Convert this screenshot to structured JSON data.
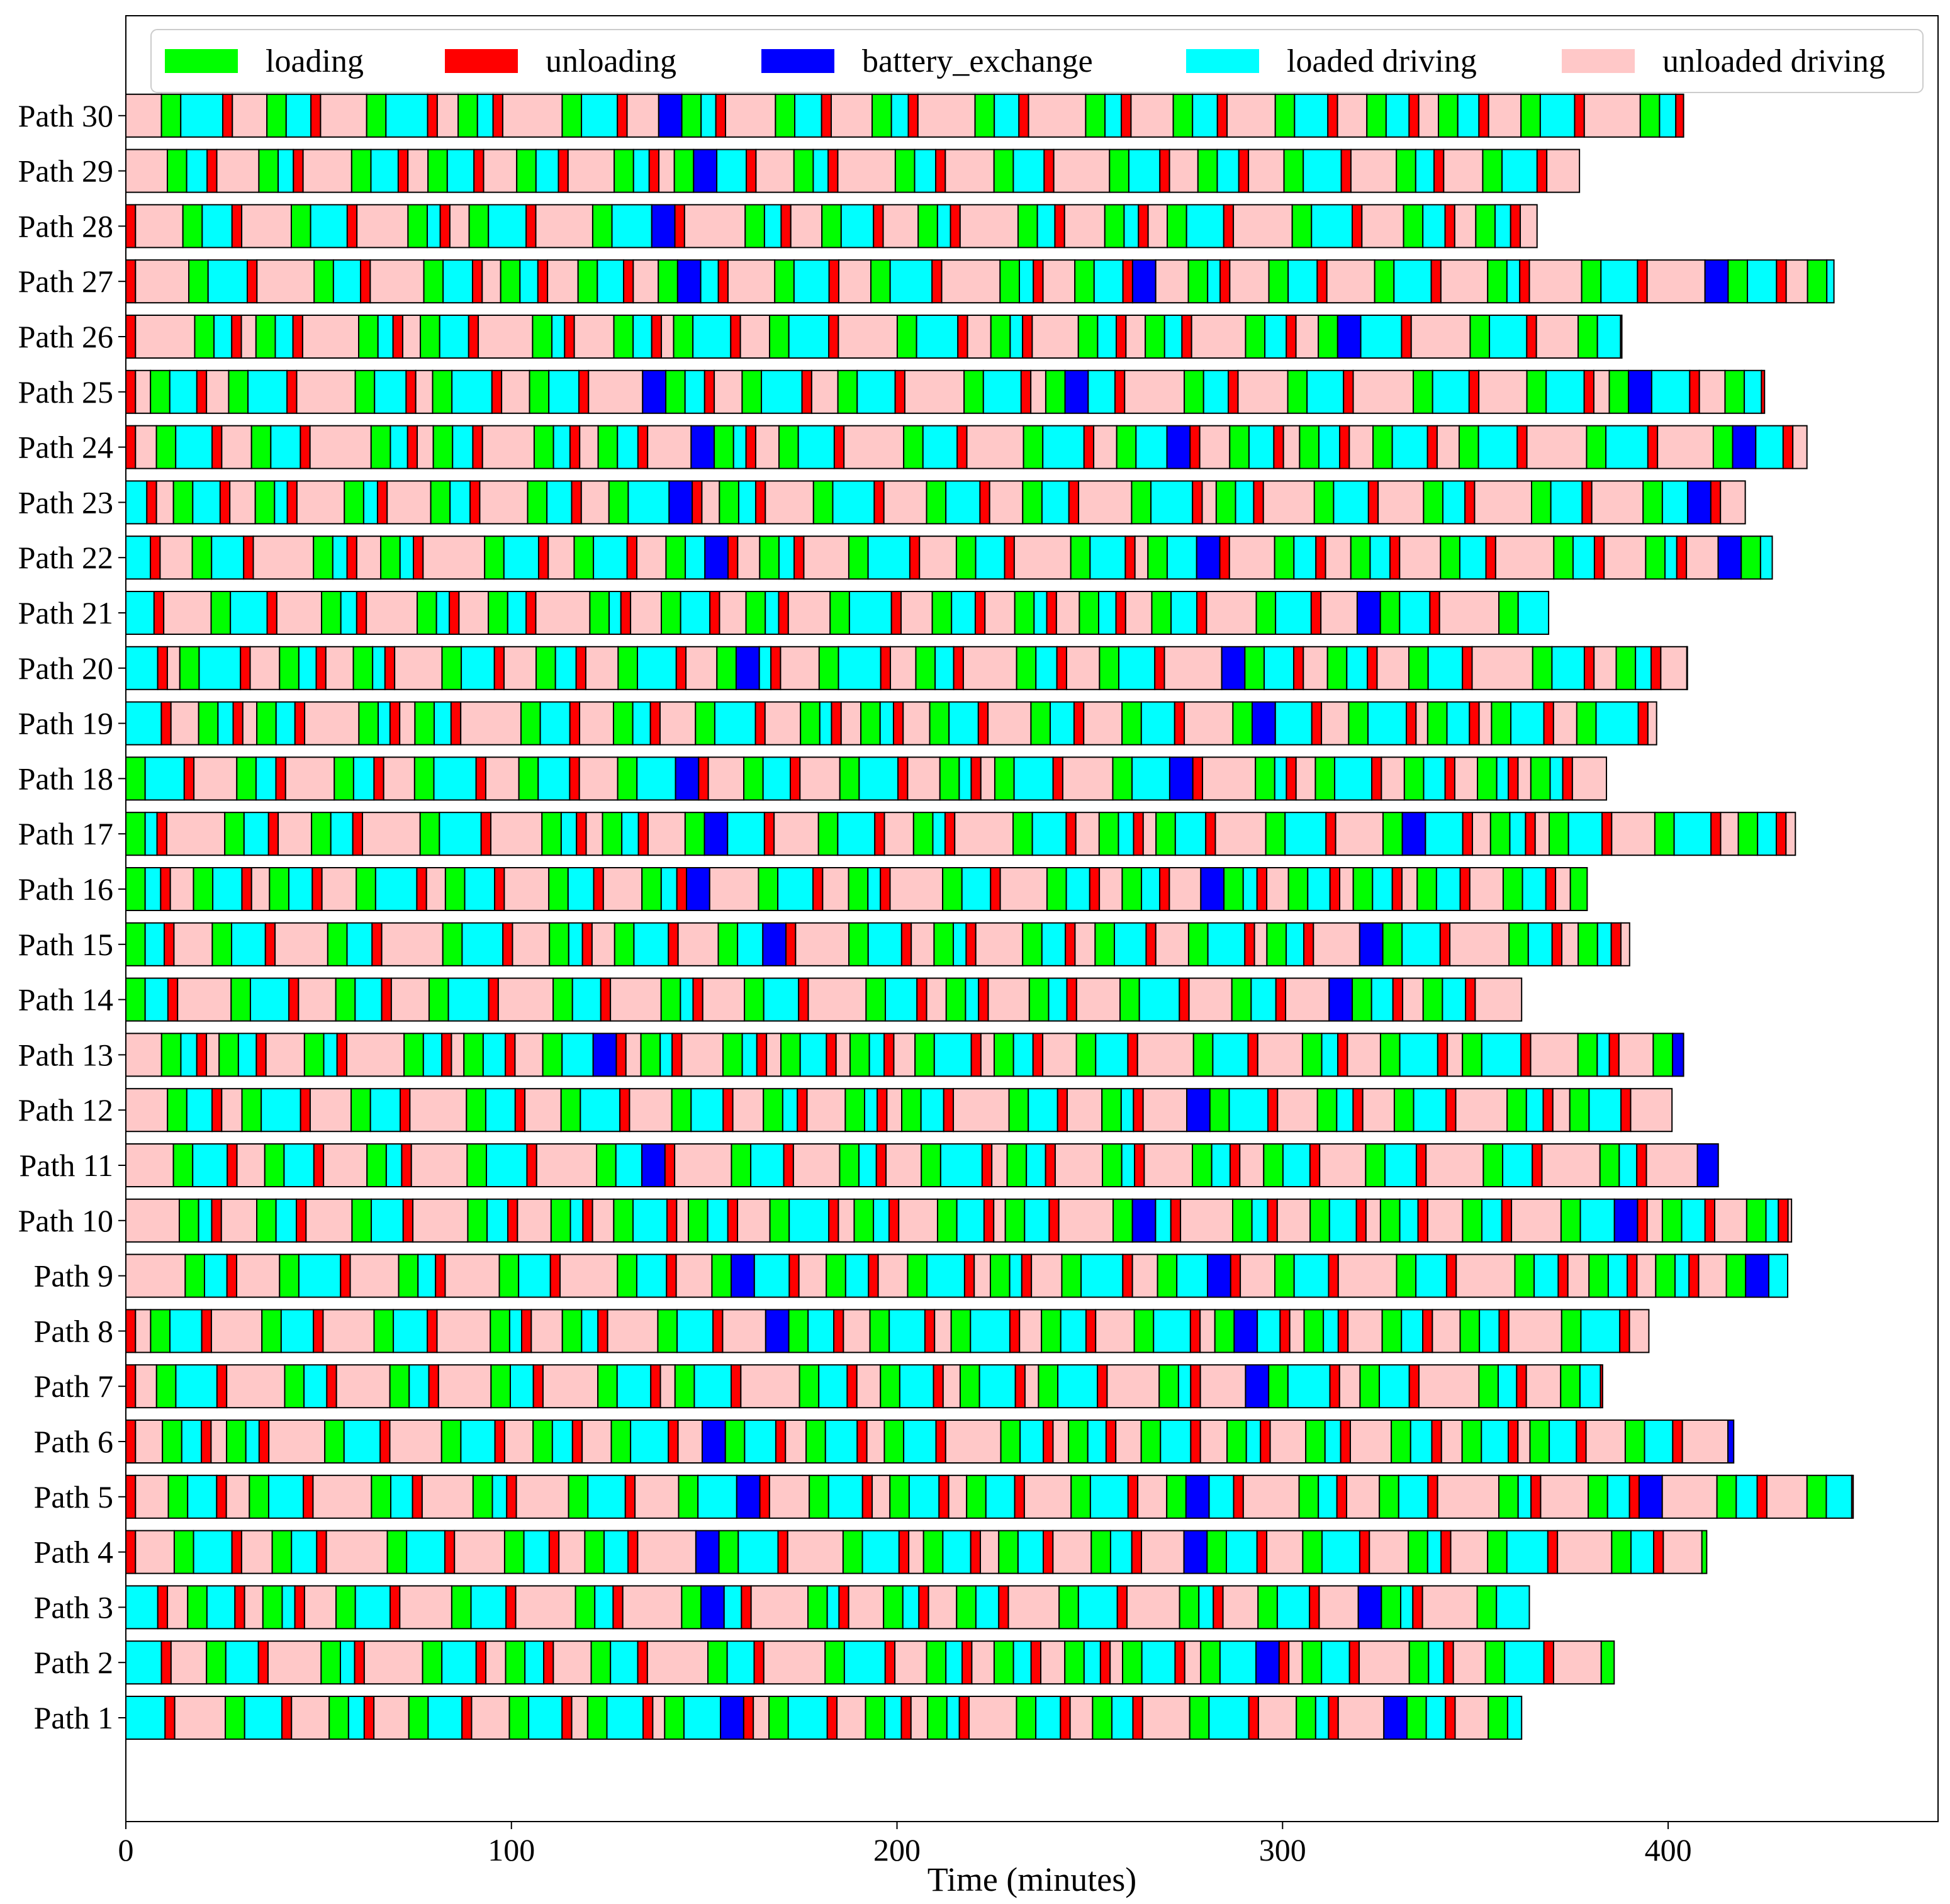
{
  "chart_data": {
    "type": "gantt",
    "xlabel": "Time (minutes)",
    "xlim": [
      0,
      470
    ],
    "xticks": [
      0,
      100,
      200,
      300,
      400
    ],
    "legend_position": "top",
    "legend": [
      {
        "key": "loading",
        "label": "loading",
        "color": "#00ff00"
      },
      {
        "key": "unloading",
        "label": "unloading",
        "color": "#ff0000"
      },
      {
        "key": "battery_exchange",
        "label": "battery_exchange",
        "color": "#0000ff"
      },
      {
        "key": "loaded_driving",
        "label": "loaded driving",
        "color": "#00ffff"
      },
      {
        "key": "unloaded_driving",
        "label": "unloaded driving",
        "color": "#ffc8c8"
      }
    ],
    "cycle_pattern": {
      "sequence": [
        "unloaded_driving",
        "loading",
        "loaded_driving",
        "unloading"
      ],
      "durations_min": {
        "loading": 5,
        "unloading": 2.5,
        "battery_exchange": 6,
        "loaded_driving": [
          3,
          11
        ],
        "unloaded_driving": [
          3,
          16
        ]
      }
    },
    "paths": [
      {
        "label": "Path 1",
        "end": 362,
        "battery_exchange_at": [
          149,
          315
        ]
      },
      {
        "label": "Path 2",
        "end": 386,
        "battery_exchange_at": [
          291
        ]
      },
      {
        "label": "Path 3",
        "end": 364,
        "battery_exchange_at": [
          149,
          317
        ]
      },
      {
        "label": "Path 4",
        "end": 410,
        "battery_exchange_at": [
          138,
          271
        ]
      },
      {
        "label": "Path 5",
        "end": 448,
        "battery_exchange_at": [
          153,
          271,
          392
        ]
      },
      {
        "label": "Path 6",
        "end": 417,
        "battery_exchange_at": [
          146,
          411
        ]
      },
      {
        "label": "Path 7",
        "end": 383,
        "battery_exchange_at": [
          280
        ]
      },
      {
        "label": "Path 8",
        "end": 395,
        "battery_exchange_at": [
          157,
          286
        ]
      },
      {
        "label": "Path 9",
        "end": 431,
        "battery_exchange_at": [
          156,
          280,
          416
        ]
      },
      {
        "label": "Path 10",
        "end": 432,
        "battery_exchange_at": [
          260,
          383
        ]
      },
      {
        "label": "Path 11",
        "end": 413,
        "battery_exchange_at": [
          131,
          407
        ]
      },
      {
        "label": "Path 12",
        "end": 401,
        "battery_exchange_at": [
          272
        ]
      },
      {
        "label": "Path 13",
        "end": 404,
        "battery_exchange_at": [
          115,
          398
        ]
      },
      {
        "label": "Path 14",
        "end": 362,
        "battery_exchange_at": [
          306
        ]
      },
      {
        "label": "Path 15",
        "end": 390,
        "battery_exchange_at": [
          162,
          319
        ]
      },
      {
        "label": "Path 16",
        "end": 379,
        "battery_exchange_at": [
          144,
          271
        ]
      },
      {
        "label": "Path 17",
        "end": 433,
        "battery_exchange_at": [
          150,
          331
        ]
      },
      {
        "label": "Path 18",
        "end": 384,
        "battery_exchange_at": [
          134,
          267
        ]
      },
      {
        "label": "Path 19",
        "end": 397,
        "battery_exchange_at": [
          290
        ]
      },
      {
        "label": "Path 20",
        "end": 405,
        "battery_exchange_at": [
          157,
          281
        ]
      },
      {
        "label": "Path 21",
        "end": 369,
        "battery_exchange_at": [
          311
        ]
      },
      {
        "label": "Path 22",
        "end": 427,
        "battery_exchange_at": [
          146,
          273,
          406
        ]
      },
      {
        "label": "Path 23",
        "end": 420,
        "battery_exchange_at": [
          135,
          400
        ]
      },
      {
        "label": "Path 24",
        "end": 436,
        "battery_exchange_at": [
          138,
          265,
          413
        ]
      },
      {
        "label": "Path 25",
        "end": 425,
        "battery_exchange_at": [
          124,
          242,
          387
        ]
      },
      {
        "label": "Path 26",
        "end": 388,
        "battery_exchange_at": [
          313
        ]
      },
      {
        "label": "Path 27",
        "end": 443,
        "battery_exchange_at": [
          142,
          260,
          405
        ]
      },
      {
        "label": "Path 28",
        "end": 366,
        "battery_exchange_at": [
          135
        ]
      },
      {
        "label": "Path 29",
        "end": 377,
        "battery_exchange_at": [
          145
        ]
      },
      {
        "label": "Path 30",
        "end": 404,
        "battery_exchange_at": [
          130
        ]
      }
    ]
  }
}
